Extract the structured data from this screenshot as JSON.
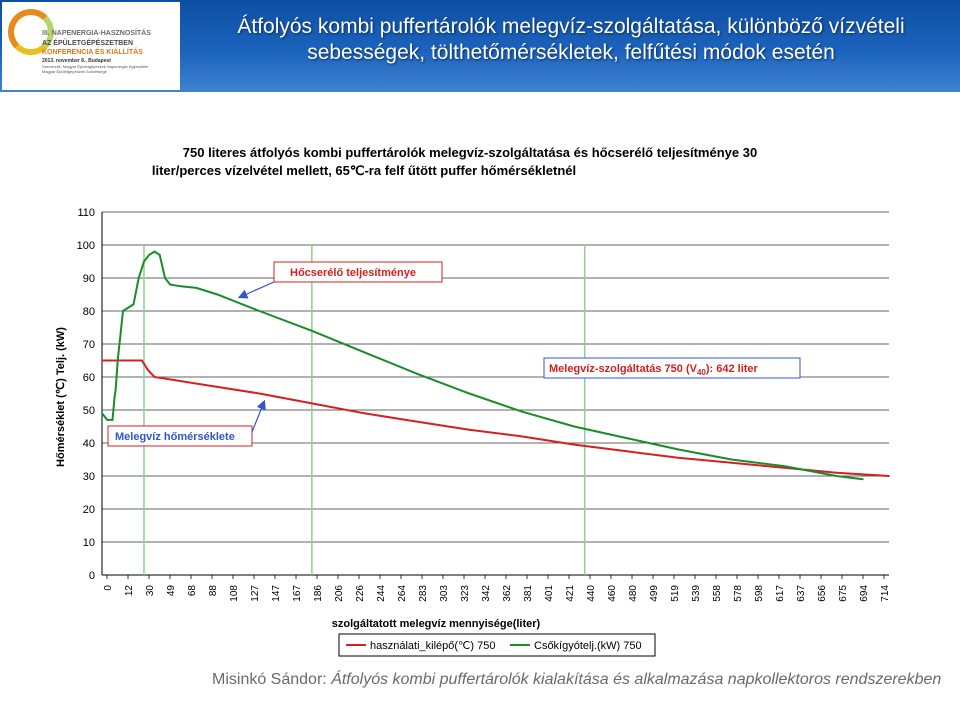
{
  "header": {
    "title_line1": "Átfolyós kombi puffertárolók melegvíz-szolgáltatása, különböző vízvételi",
    "title_line2": "sebességek, tölthetőmérsékletek, felfűtési módok esetén"
  },
  "logo": {
    "line1": "III. NAPENERGIA-HASZNOSÍTÁS",
    "line2": "AZ ÉPÜLETGÉPÉSZETBEN",
    "line3": "KONFERENCIA ÉS KIÁLLÍTÁS",
    "line4": "2013. november 8., Budapest",
    "line5": "Szervezők: Magyar Épületgépészek Napenergia Egyesülete",
    "line6": "Magyar Épületgépészek Szövetsége"
  },
  "footer": {
    "author": "Misinkó Sándor: ",
    "text": "Átfolyós kombi puffertárolók kialakítása és alkalmazása napkollektoros rendszerekben"
  },
  "chart_data": {
    "type": "line",
    "title_line1": "750 literes átfolyós kombi puffertárolók melegvíz-szolgáltatása és hőcserélő teljesítménye 30",
    "title_line2": "liter/perces vízelvétel mellett, 65℃-ra felf űtött puffer hőmérsékletnél",
    "ylabel": "Hőmérséklet (℃) Telj. (kW)",
    "xlabel": "szolgáltatott melegvíz mennyisége(liter)",
    "ylim": [
      0,
      110
    ],
    "yticks": [
      0,
      10,
      20,
      30,
      40,
      50,
      60,
      70,
      80,
      90,
      100,
      110
    ],
    "xlim": [
      0,
      750
    ],
    "xticks": [
      "0",
      "12",
      "30",
      "49",
      "68",
      "88",
      "108",
      "127",
      "147",
      "167",
      "186",
      "206",
      "226",
      "244",
      "264",
      "283",
      "303",
      "323",
      "342",
      "362",
      "381",
      "401",
      "421",
      "440",
      "460",
      "480",
      "499",
      "519",
      "539",
      "558",
      "578",
      "598",
      "617",
      "637",
      "656",
      "675",
      "694",
      "714"
    ],
    "vlines": [
      40,
      200,
      460
    ],
    "series": [
      {
        "name": "használati_kilépő(℃) 750",
        "color": "#d42020",
        "points": [
          [
            0,
            65
          ],
          [
            20,
            65
          ],
          [
            38,
            65
          ],
          [
            44,
            62
          ],
          [
            50,
            60
          ],
          [
            70,
            59
          ],
          [
            100,
            57.5
          ],
          [
            150,
            55
          ],
          [
            200,
            52
          ],
          [
            250,
            49
          ],
          [
            300,
            46.5
          ],
          [
            350,
            44
          ],
          [
            400,
            42
          ],
          [
            450,
            39.5
          ],
          [
            500,
            37.5
          ],
          [
            550,
            35.5
          ],
          [
            600,
            34
          ],
          [
            650,
            32.5
          ],
          [
            700,
            31
          ],
          [
            750,
            30
          ]
        ]
      },
      {
        "name": "Csőkígyótelj.(kW) 750",
        "color": "#1a8c2a",
        "points": [
          [
            0,
            49
          ],
          [
            5,
            47
          ],
          [
            10,
            47
          ],
          [
            12,
            54
          ],
          [
            13,
            56
          ],
          [
            15,
            65
          ],
          [
            20,
            80
          ],
          [
            30,
            82
          ],
          [
            35,
            90
          ],
          [
            40,
            95
          ],
          [
            45,
            97
          ],
          [
            50,
            98
          ],
          [
            55,
            97
          ],
          [
            60,
            90
          ],
          [
            65,
            88
          ],
          [
            75,
            87.5
          ],
          [
            90,
            87
          ],
          [
            110,
            85
          ],
          [
            150,
            80
          ],
          [
            200,
            74
          ],
          [
            250,
            67.5
          ],
          [
            300,
            61
          ],
          [
            350,
            55
          ],
          [
            400,
            49.5
          ],
          [
            450,
            45
          ],
          [
            500,
            41.5
          ],
          [
            550,
            38
          ],
          [
            600,
            35
          ],
          [
            650,
            33
          ],
          [
            700,
            30
          ],
          [
            725,
            29
          ]
        ]
      }
    ],
    "annotations": [
      {
        "text": "Hőcserélő teljesítménye"
      },
      {
        "text_main": "Melegvíz-szolgáltatás 750 (V",
        "text_sub": "40",
        "text_end": "): 642 liter"
      },
      {
        "text": "Melegvíz hőmérséklete"
      }
    ]
  }
}
